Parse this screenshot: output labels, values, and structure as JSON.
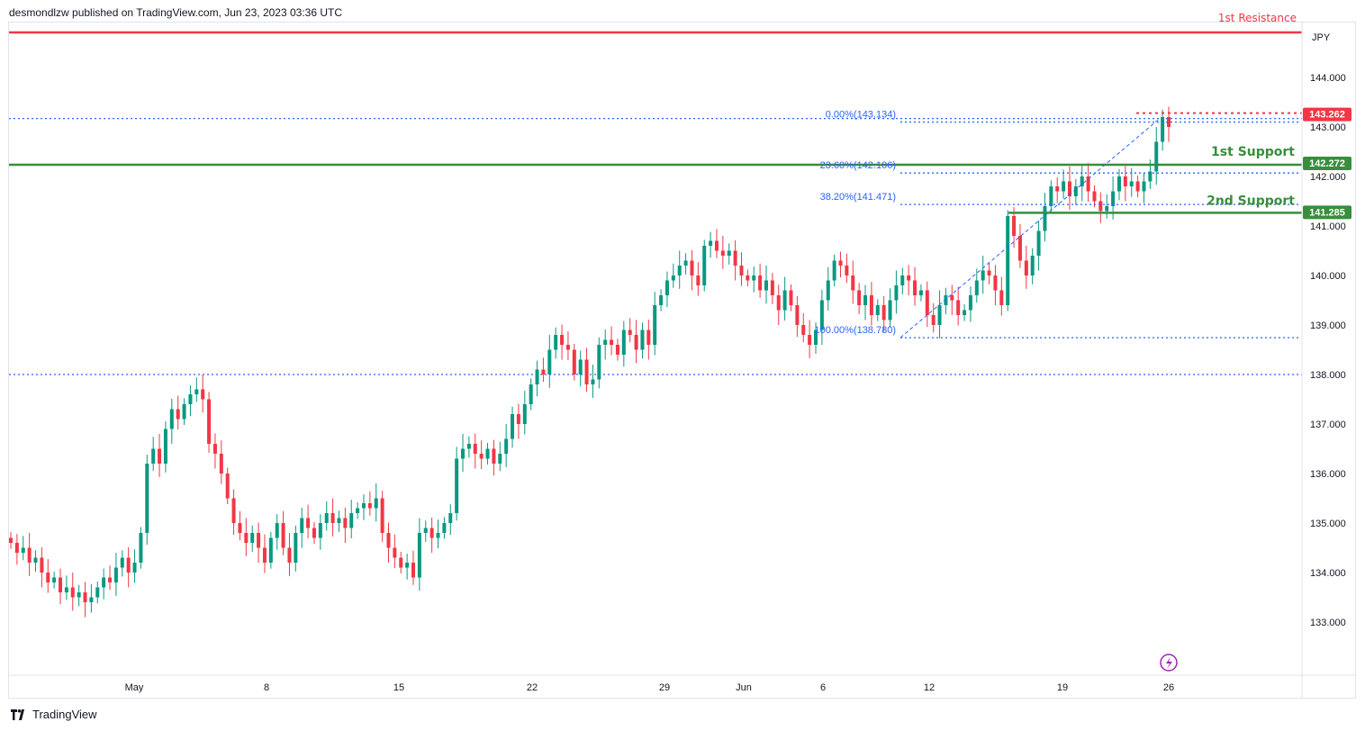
{
  "header": {
    "publisher_line": "desmondlzw published on TradingView.com, Jun 23, 2023 03:36 UTC"
  },
  "footer": {
    "brand": "TradingView"
  },
  "colors": {
    "up": "#089981",
    "down": "#f23645",
    "support": "#388e3c",
    "resistance": "#f23645",
    "fib": "#2962ff"
  },
  "chart_data": {
    "type": "candlestick",
    "currency": "JPY",
    "ylim": [
      132.2,
      145.9
    ],
    "y_ticks": [
      "144.000",
      "143.000",
      "142.000",
      "141.000",
      "140.000",
      "139.000",
      "138.000",
      "137.000",
      "136.000",
      "135.000",
      "134.000",
      "133.000"
    ],
    "x_ticks": [
      "May",
      "8",
      "15",
      "22",
      "29",
      "Jun",
      "6",
      "12",
      "19",
      "26"
    ],
    "resistance_label": "1st Resistance",
    "levels": [
      {
        "name": "resistance",
        "value": 143.262,
        "label": "143.262",
        "text": ""
      },
      {
        "name": "first-support",
        "value": 142.272,
        "label": "142.272",
        "text": "1st Support"
      },
      {
        "name": "second-support",
        "value": 141.285,
        "label": "141.285",
        "text": "2nd Support"
      }
    ],
    "fib_levels": [
      {
        "ratio": "0.00%(143.134)",
        "value": 143.134
      },
      {
        "ratio": "23.60%(142.106)",
        "value": 142.106
      },
      {
        "ratio": "38.20%(141.471)",
        "value": 141.471
      },
      {
        "ratio": "100.00%(138.780)",
        "value": 138.78
      }
    ],
    "horizontal_lines": [
      143.134,
      138.0,
      145.0
    ],
    "closes": [
      134.6,
      134.4,
      134.5,
      134.2,
      134.3,
      134.0,
      133.8,
      133.9,
      133.6,
      133.7,
      133.5,
      133.6,
      133.4,
      133.5,
      133.7,
      133.9,
      133.8,
      134.1,
      134.3,
      134.0,
      134.2,
      134.8,
      136.2,
      136.5,
      136.2,
      136.9,
      137.3,
      137.1,
      137.4,
      137.6,
      137.7,
      137.5,
      136.6,
      136.4,
      136.0,
      135.5,
      135.0,
      134.8,
      134.6,
      134.8,
      134.5,
      134.2,
      134.7,
      135.0,
      134.5,
      134.2,
      134.8,
      135.1,
      134.9,
      134.7,
      135.0,
      135.2,
      135.0,
      135.1,
      134.9,
      135.2,
      135.3,
      135.4,
      135.3,
      135.5,
      134.8,
      134.5,
      134.3,
      134.1,
      134.2,
      133.9,
      134.8,
      134.9,
      134.7,
      134.8,
      135.0,
      135.2,
      136.3,
      136.5,
      136.6,
      136.4,
      136.3,
      136.5,
      136.2,
      136.4,
      136.7,
      137.2,
      137.0,
      137.4,
      137.8,
      138.1,
      138.0,
      138.5,
      138.8,
      138.6,
      138.5,
      138.0,
      138.3,
      137.8,
      137.9,
      138.6,
      138.7,
      138.6,
      138.4,
      138.9,
      138.8,
      138.5,
      138.9,
      138.6,
      139.4,
      139.6,
      139.9,
      140.0,
      140.2,
      140.3,
      140.0,
      139.8,
      140.6,
      140.7,
      140.5,
      140.4,
      140.5,
      140.2,
      140.0,
      139.9,
      140.0,
      139.7,
      139.9,
      139.6,
      139.3,
      139.7,
      139.4,
      139.0,
      138.8,
      138.6,
      138.9,
      139.5,
      139.9,
      140.3,
      140.2,
      140.0,
      139.7,
      139.4,
      139.6,
      139.2,
      139.4,
      139.1,
      139.5,
      139.8,
      140.0,
      139.9,
      139.6,
      139.7,
      139.2,
      139.0,
      139.4,
      139.6,
      139.5,
      139.2,
      139.3,
      139.6,
      139.9,
      140.1,
      140.0,
      139.7,
      139.4,
      141.2,
      140.8,
      140.3,
      140.0,
      140.4,
      140.9,
      141.4,
      141.8,
      141.7,
      141.9,
      141.6,
      141.8,
      142.0,
      141.7,
      141.5,
      141.3,
      141.4,
      141.7,
      142.0,
      141.8,
      141.9,
      141.7,
      141.9,
      142.1,
      142.7,
      143.2,
      143.0
    ]
  }
}
